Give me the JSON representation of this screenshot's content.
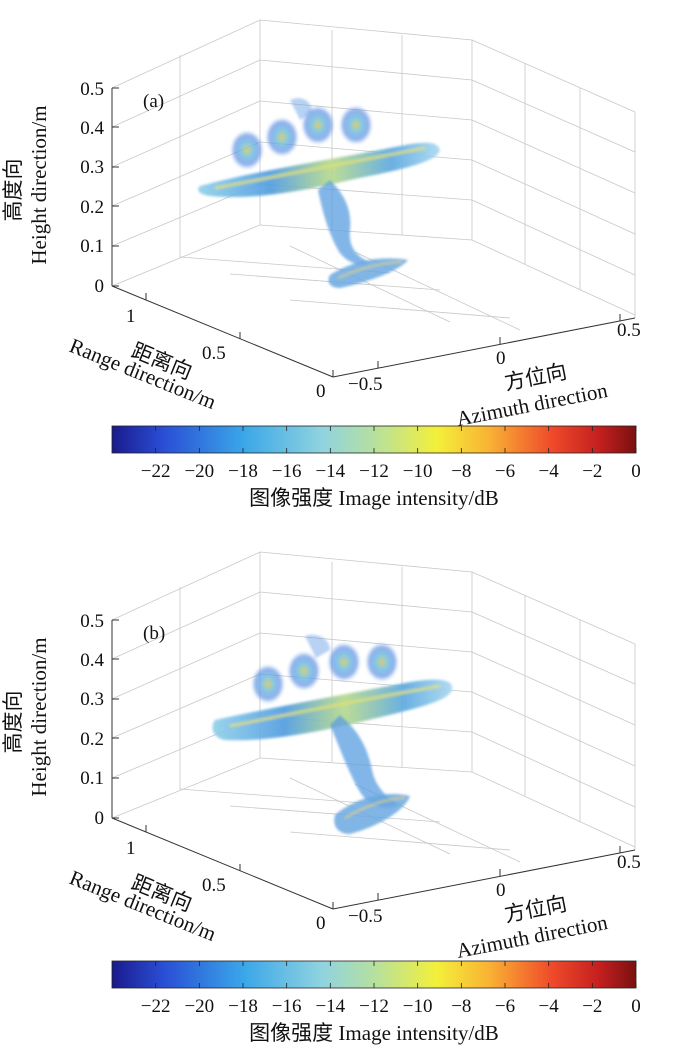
{
  "chart_data": [
    {
      "type": "scatter",
      "panel_label": "(a)",
      "zlabel": "Height direction/m",
      "zlabel_cn": "高度向",
      "ylabel": "Range direction/m",
      "ylabel_cn": "距离向",
      "xlabel": "Azimuth direction",
      "xlabel_cn": "方位向",
      "z_ticks": [
        "0",
        "0.1",
        "0.2",
        "0.3",
        "0.4",
        "0.5"
      ],
      "range_ticks": [
        "1",
        "0.5",
        "0"
      ],
      "azimuth_ticks": [
        "−0.5",
        "0",
        "0.5"
      ],
      "zlim": [
        0,
        0.5
      ],
      "grid": true
    },
    {
      "type": "scatter",
      "panel_label": "(b)",
      "zlabel": "Height direction/m",
      "zlabel_cn": "高度向",
      "ylabel": "Range direction/m",
      "ylabel_cn": "距离向",
      "xlabel": "Azimuth direction",
      "xlabel_cn": "方位向",
      "z_ticks": [
        "0",
        "0.1",
        "0.2",
        "0.3",
        "0.4",
        "0.5"
      ],
      "range_ticks": [
        "1",
        "0.5",
        "0"
      ],
      "azimuth_ticks": [
        "−0.5",
        "0",
        "0.5"
      ],
      "zlim": [
        0,
        0.5
      ],
      "grid": true
    }
  ],
  "colorbar": {
    "ticks": [
      "−22",
      "−20",
      "−18",
      "−16",
      "−14",
      "−12",
      "−10",
      "−8",
      "−6",
      "−4",
      "−2",
      "0"
    ],
    "label": "图像强度 Image intensity/dB",
    "range": [
      -24,
      0
    ],
    "colors": [
      "#1a1a8c",
      "#2a4fd6",
      "#3aa6e8",
      "#8fd3e0",
      "#b6e0a0",
      "#f3f03a",
      "#f9b234",
      "#ef4a2a",
      "#c41f1f",
      "#7a1010"
    ]
  }
}
